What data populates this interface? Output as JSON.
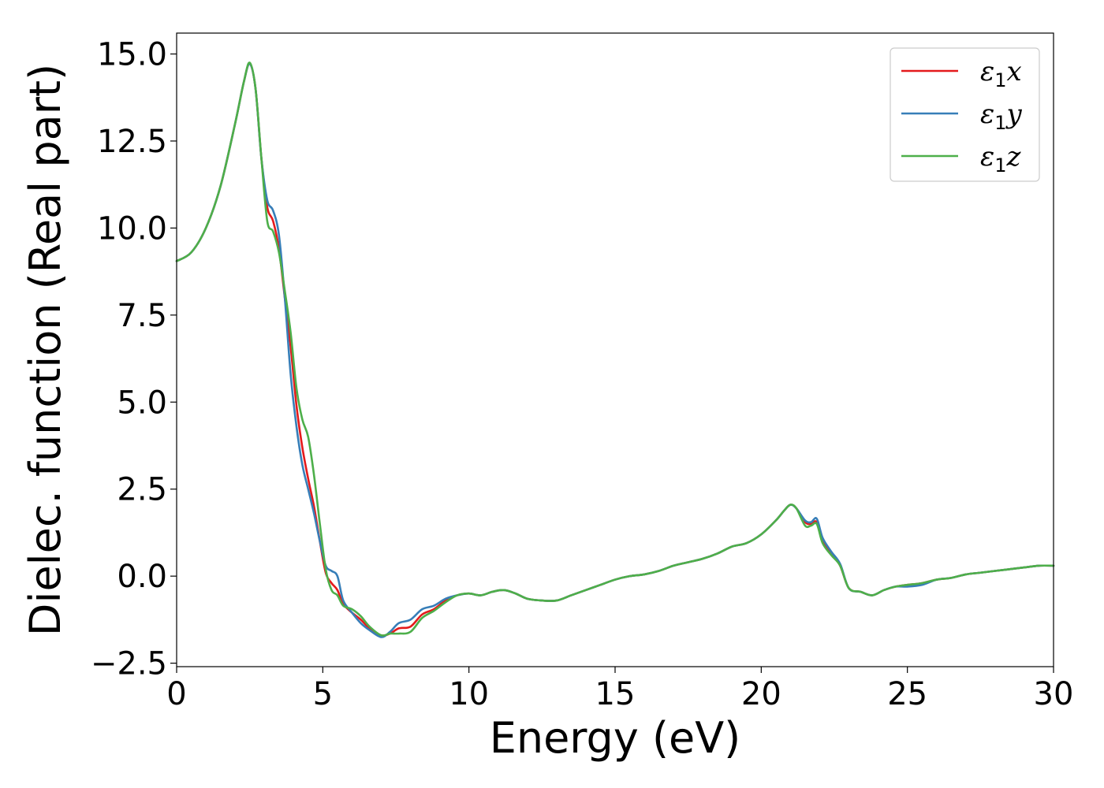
{
  "chart_data": {
    "type": "line",
    "xlabel": "Energy (eV)",
    "ylabel": "Dielec. function (Real part)",
    "xlim": [
      0,
      30
    ],
    "ylim": [
      -2.6,
      15.6
    ],
    "xticks": [
      0,
      5,
      10,
      15,
      20,
      25,
      30
    ],
    "xtick_labels": [
      "0",
      "5",
      "10",
      "15",
      "20",
      "25",
      "30"
    ],
    "yticks": [
      -2.5,
      0.0,
      2.5,
      5.0,
      7.5,
      10.0,
      12.5,
      15.0
    ],
    "ytick_labels": [
      "−2.5",
      "0.0",
      "2.5",
      "5.0",
      "7.5",
      "10.0",
      "12.5",
      "15.0"
    ],
    "grid": false,
    "legend_position": "top-right",
    "series": [
      {
        "name": "ε1x",
        "legend_base": "ε",
        "legend_sub": "1",
        "legend_suffix": "x",
        "color": "#e41a1c",
        "x": [
          0,
          0.5,
          1.0,
          1.5,
          2.0,
          2.3,
          2.5,
          2.7,
          2.9,
          3.1,
          3.3,
          3.5,
          3.7,
          3.9,
          4.1,
          4.3,
          4.5,
          4.7,
          4.9,
          5.1,
          5.3,
          5.5,
          5.7,
          6.0,
          6.3,
          6.6,
          7.0,
          7.3,
          7.6,
          8.0,
          8.4,
          8.8,
          9.2,
          9.6,
          10.0,
          10.4,
          10.8,
          11.2,
          11.6,
          12.0,
          12.5,
          13.0,
          13.5,
          14.0,
          14.5,
          15.0,
          15.5,
          16.0,
          16.5,
          17.0,
          17.5,
          18.0,
          18.5,
          19.0,
          19.5,
          20.0,
          20.5,
          20.8,
          21.0,
          21.2,
          21.5,
          21.7,
          21.9,
          22.1,
          22.4,
          22.7,
          23.0,
          23.4,
          23.8,
          24.2,
          24.6,
          25.0,
          25.5,
          26.0,
          26.5,
          27.0,
          27.5,
          28.0,
          28.5,
          29.0,
          29.5,
          30.0
        ],
        "y": [
          9.05,
          9.3,
          10.0,
          11.2,
          13.0,
          14.2,
          14.72,
          14.0,
          12.0,
          10.6,
          10.2,
          9.4,
          8.0,
          6.6,
          4.9,
          3.7,
          2.8,
          2.0,
          1.0,
          0.1,
          -0.2,
          -0.4,
          -0.8,
          -1.05,
          -1.25,
          -1.5,
          -1.7,
          -1.65,
          -1.5,
          -1.45,
          -1.1,
          -0.95,
          -0.7,
          -0.55,
          -0.5,
          -0.55,
          -0.45,
          -0.4,
          -0.5,
          -0.65,
          -0.7,
          -0.7,
          -0.55,
          -0.4,
          -0.25,
          -0.1,
          0.0,
          0.05,
          0.15,
          0.3,
          0.4,
          0.5,
          0.65,
          0.85,
          0.95,
          1.2,
          1.6,
          1.9,
          2.05,
          1.95,
          1.55,
          1.5,
          1.55,
          1.0,
          0.65,
          0.3,
          -0.35,
          -0.45,
          -0.55,
          -0.4,
          -0.3,
          -0.25,
          -0.2,
          -0.1,
          -0.05,
          0.05,
          0.1,
          0.15,
          0.2,
          0.25,
          0.3,
          0.3
        ]
      },
      {
        "name": "ε1y",
        "legend_base": "ε",
        "legend_sub": "1",
        "legend_suffix": "y",
        "color": "#377eb8",
        "x": [
          0,
          0.5,
          1.0,
          1.5,
          2.0,
          2.3,
          2.5,
          2.7,
          2.9,
          3.1,
          3.3,
          3.5,
          3.7,
          3.9,
          4.1,
          4.3,
          4.5,
          4.7,
          4.9,
          5.1,
          5.3,
          5.5,
          5.7,
          6.0,
          6.3,
          6.6,
          7.0,
          7.3,
          7.6,
          8.0,
          8.4,
          8.8,
          9.2,
          9.6,
          10.0,
          10.4,
          10.8,
          11.2,
          11.6,
          12.0,
          12.5,
          13.0,
          13.5,
          14.0,
          14.5,
          15.0,
          15.5,
          16.0,
          16.5,
          17.0,
          17.5,
          18.0,
          18.5,
          19.0,
          19.5,
          20.0,
          20.5,
          20.8,
          21.0,
          21.2,
          21.5,
          21.7,
          21.9,
          22.1,
          22.4,
          22.7,
          23.0,
          23.4,
          23.8,
          24.2,
          24.6,
          25.0,
          25.5,
          26.0,
          26.5,
          27.0,
          27.5,
          28.0,
          28.5,
          29.0,
          29.5,
          30.0
        ],
        "y": [
          9.05,
          9.3,
          10.0,
          11.2,
          13.0,
          14.2,
          14.72,
          14.0,
          12.0,
          10.8,
          10.5,
          9.8,
          8.0,
          5.8,
          4.3,
          3.2,
          2.5,
          1.8,
          1.0,
          0.3,
          0.15,
          0.0,
          -0.7,
          -1.05,
          -1.35,
          -1.55,
          -1.75,
          -1.6,
          -1.35,
          -1.25,
          -0.95,
          -0.85,
          -0.65,
          -0.55,
          -0.5,
          -0.55,
          -0.45,
          -0.4,
          -0.5,
          -0.65,
          -0.7,
          -0.7,
          -0.55,
          -0.4,
          -0.25,
          -0.1,
          0.0,
          0.05,
          0.15,
          0.3,
          0.4,
          0.5,
          0.65,
          0.85,
          0.95,
          1.2,
          1.6,
          1.9,
          2.05,
          1.95,
          1.6,
          1.55,
          1.65,
          1.1,
          0.7,
          0.35,
          -0.35,
          -0.45,
          -0.55,
          -0.4,
          -0.3,
          -0.3,
          -0.25,
          -0.1,
          -0.05,
          0.05,
          0.1,
          0.15,
          0.2,
          0.25,
          0.3,
          0.3
        ]
      },
      {
        "name": "ε1z",
        "legend_base": "ε",
        "legend_sub": "1",
        "legend_suffix": "z",
        "color": "#4daf4a",
        "x": [
          0,
          0.5,
          1.0,
          1.5,
          2.0,
          2.3,
          2.5,
          2.7,
          2.9,
          3.1,
          3.3,
          3.5,
          3.7,
          3.9,
          4.1,
          4.3,
          4.5,
          4.7,
          4.9,
          5.1,
          5.3,
          5.5,
          5.7,
          6.0,
          6.3,
          6.6,
          7.0,
          7.3,
          7.6,
          8.0,
          8.4,
          8.8,
          9.2,
          9.6,
          10.0,
          10.4,
          10.8,
          11.2,
          11.6,
          12.0,
          12.5,
          13.0,
          13.5,
          14.0,
          14.5,
          15.0,
          15.5,
          16.0,
          16.5,
          17.0,
          17.5,
          18.0,
          18.5,
          19.0,
          19.5,
          20.0,
          20.5,
          20.8,
          21.0,
          21.2,
          21.5,
          21.7,
          21.9,
          22.1,
          22.4,
          22.7,
          23.0,
          23.4,
          23.8,
          24.2,
          24.6,
          25.0,
          25.5,
          26.0,
          26.5,
          27.0,
          27.5,
          28.0,
          28.5,
          29.0,
          29.5,
          30.0
        ],
        "y": [
          9.05,
          9.3,
          10.0,
          11.2,
          13.0,
          14.2,
          14.75,
          14.0,
          12.0,
          10.2,
          9.9,
          9.3,
          8.2,
          7.0,
          5.4,
          4.5,
          4.0,
          2.9,
          1.5,
          0.2,
          -0.4,
          -0.55,
          -0.85,
          -0.95,
          -1.15,
          -1.45,
          -1.7,
          -1.65,
          -1.65,
          -1.6,
          -1.2,
          -1.0,
          -0.75,
          -0.55,
          -0.5,
          -0.55,
          -0.45,
          -0.4,
          -0.5,
          -0.65,
          -0.7,
          -0.7,
          -0.55,
          -0.4,
          -0.25,
          -0.1,
          0.0,
          0.05,
          0.15,
          0.3,
          0.4,
          0.5,
          0.65,
          0.85,
          0.95,
          1.2,
          1.6,
          1.9,
          2.05,
          1.95,
          1.45,
          1.45,
          1.5,
          0.95,
          0.6,
          0.3,
          -0.35,
          -0.45,
          -0.55,
          -0.4,
          -0.3,
          -0.25,
          -0.2,
          -0.1,
          -0.05,
          0.05,
          0.1,
          0.15,
          0.2,
          0.25,
          0.3,
          0.3
        ]
      }
    ]
  }
}
